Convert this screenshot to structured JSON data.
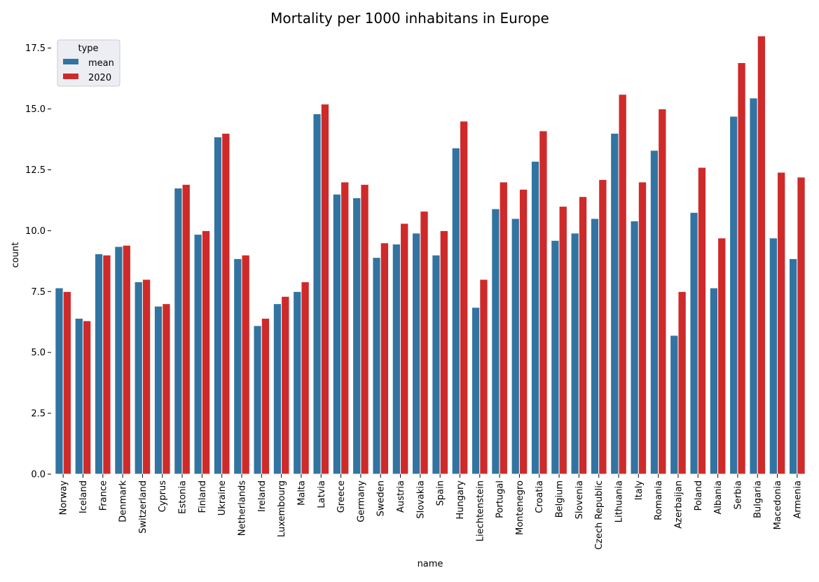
{
  "chart_data": {
    "type": "bar",
    "title": "Mortality per 1000 inhabitans in Europe",
    "xlabel": "name",
    "ylabel": "count",
    "ylim": [
      0,
      18.9
    ],
    "yticks": [
      0.0,
      2.5,
      5.0,
      7.5,
      10.0,
      12.5,
      15.0,
      17.5
    ],
    "ytick_labels": [
      "0.0",
      "2.5",
      "5.0",
      "7.5",
      "10.0",
      "12.5",
      "15.0",
      "17.5"
    ],
    "legend": {
      "title": "type",
      "placement": "top-left"
    },
    "grid": false,
    "categories": [
      "Norway",
      "Iceland",
      "France",
      "Denmark",
      "Switzerland",
      "Cyprus",
      "Estonia",
      "Finland",
      "Ukraine",
      "Netherlands",
      "Ireland",
      "Luxembourg",
      "Malta",
      "Latvia",
      "Greece",
      "Germany",
      "Sweden",
      "Austria",
      "Slovakia",
      "Spain",
      "Hungary",
      "Liechtenstein",
      "Portugal",
      "Montenegro",
      "Croatia",
      "Belgium",
      "Slovenia",
      "Czech Republic",
      "Lithuania",
      "Italy",
      "Romania",
      "Azerbaijan",
      "Poland",
      "Albania",
      "Serbia",
      "Bulgaria",
      "Macedonia",
      "Armenia"
    ],
    "series": [
      {
        "name": "mean",
        "color": "#3274a1",
        "values": [
          7.65,
          6.4,
          9.05,
          9.35,
          7.9,
          6.9,
          11.75,
          9.85,
          13.85,
          8.85,
          6.1,
          7.0,
          7.5,
          14.8,
          11.5,
          11.35,
          8.9,
          9.45,
          9.9,
          9.0,
          13.4,
          6.85,
          10.9,
          10.5,
          12.85,
          9.6,
          9.9,
          10.5,
          14.0,
          10.4,
          13.3,
          5.7,
          10.75,
          7.65,
          14.7,
          15.45,
          9.7,
          8.85
        ]
      },
      {
        "name": "2020",
        "color": "#cf2a2a",
        "values": [
          7.5,
          6.3,
          9.0,
          9.4,
          8.0,
          7.0,
          11.9,
          10.0,
          14.0,
          9.0,
          6.4,
          7.3,
          7.9,
          15.2,
          12.0,
          11.9,
          9.5,
          10.3,
          10.8,
          10.0,
          14.5,
          8.0,
          12.0,
          11.7,
          14.1,
          11.0,
          11.4,
          12.1,
          15.6,
          12.0,
          15.0,
          7.5,
          12.6,
          9.7,
          16.9,
          18.0,
          12.4,
          12.2
        ]
      }
    ]
  }
}
